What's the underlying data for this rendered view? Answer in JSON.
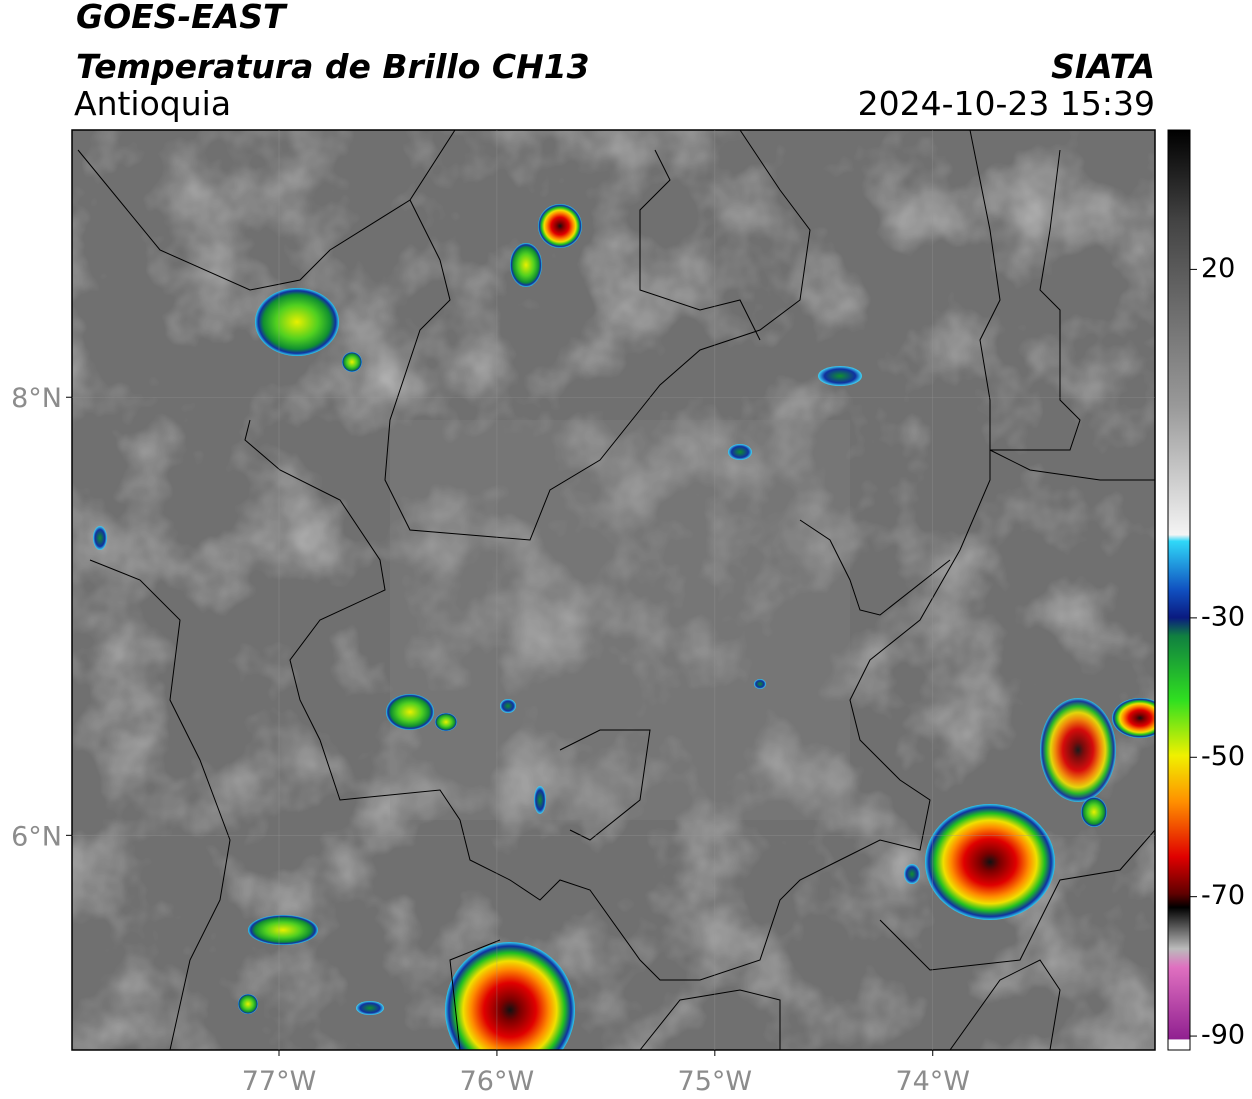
{
  "header": {
    "satellite": "GOES-EAST",
    "product": "Temperatura de Brillo CH13",
    "region": "Antioquia",
    "agency": "SIATA",
    "datetime": "2024-10-23 15:39"
  },
  "map": {
    "xlim": [
      -77.95,
      -72.98
    ],
    "ylim": [
      5.02,
      9.22
    ],
    "xticks": [
      {
        "value": -77,
        "label": "77°W"
      },
      {
        "value": -76,
        "label": "76°W"
      },
      {
        "value": -75,
        "label": "75°W"
      },
      {
        "value": -74,
        "label": "74°W"
      }
    ],
    "yticks": [
      {
        "value": 8,
        "label": "8°N"
      },
      {
        "value": 6,
        "label": "6°N"
      }
    ]
  },
  "colorbar": {
    "lim": [
      -92,
      40
    ],
    "ticks": [
      20,
      -30,
      -50,
      -70,
      -90
    ]
  }
}
